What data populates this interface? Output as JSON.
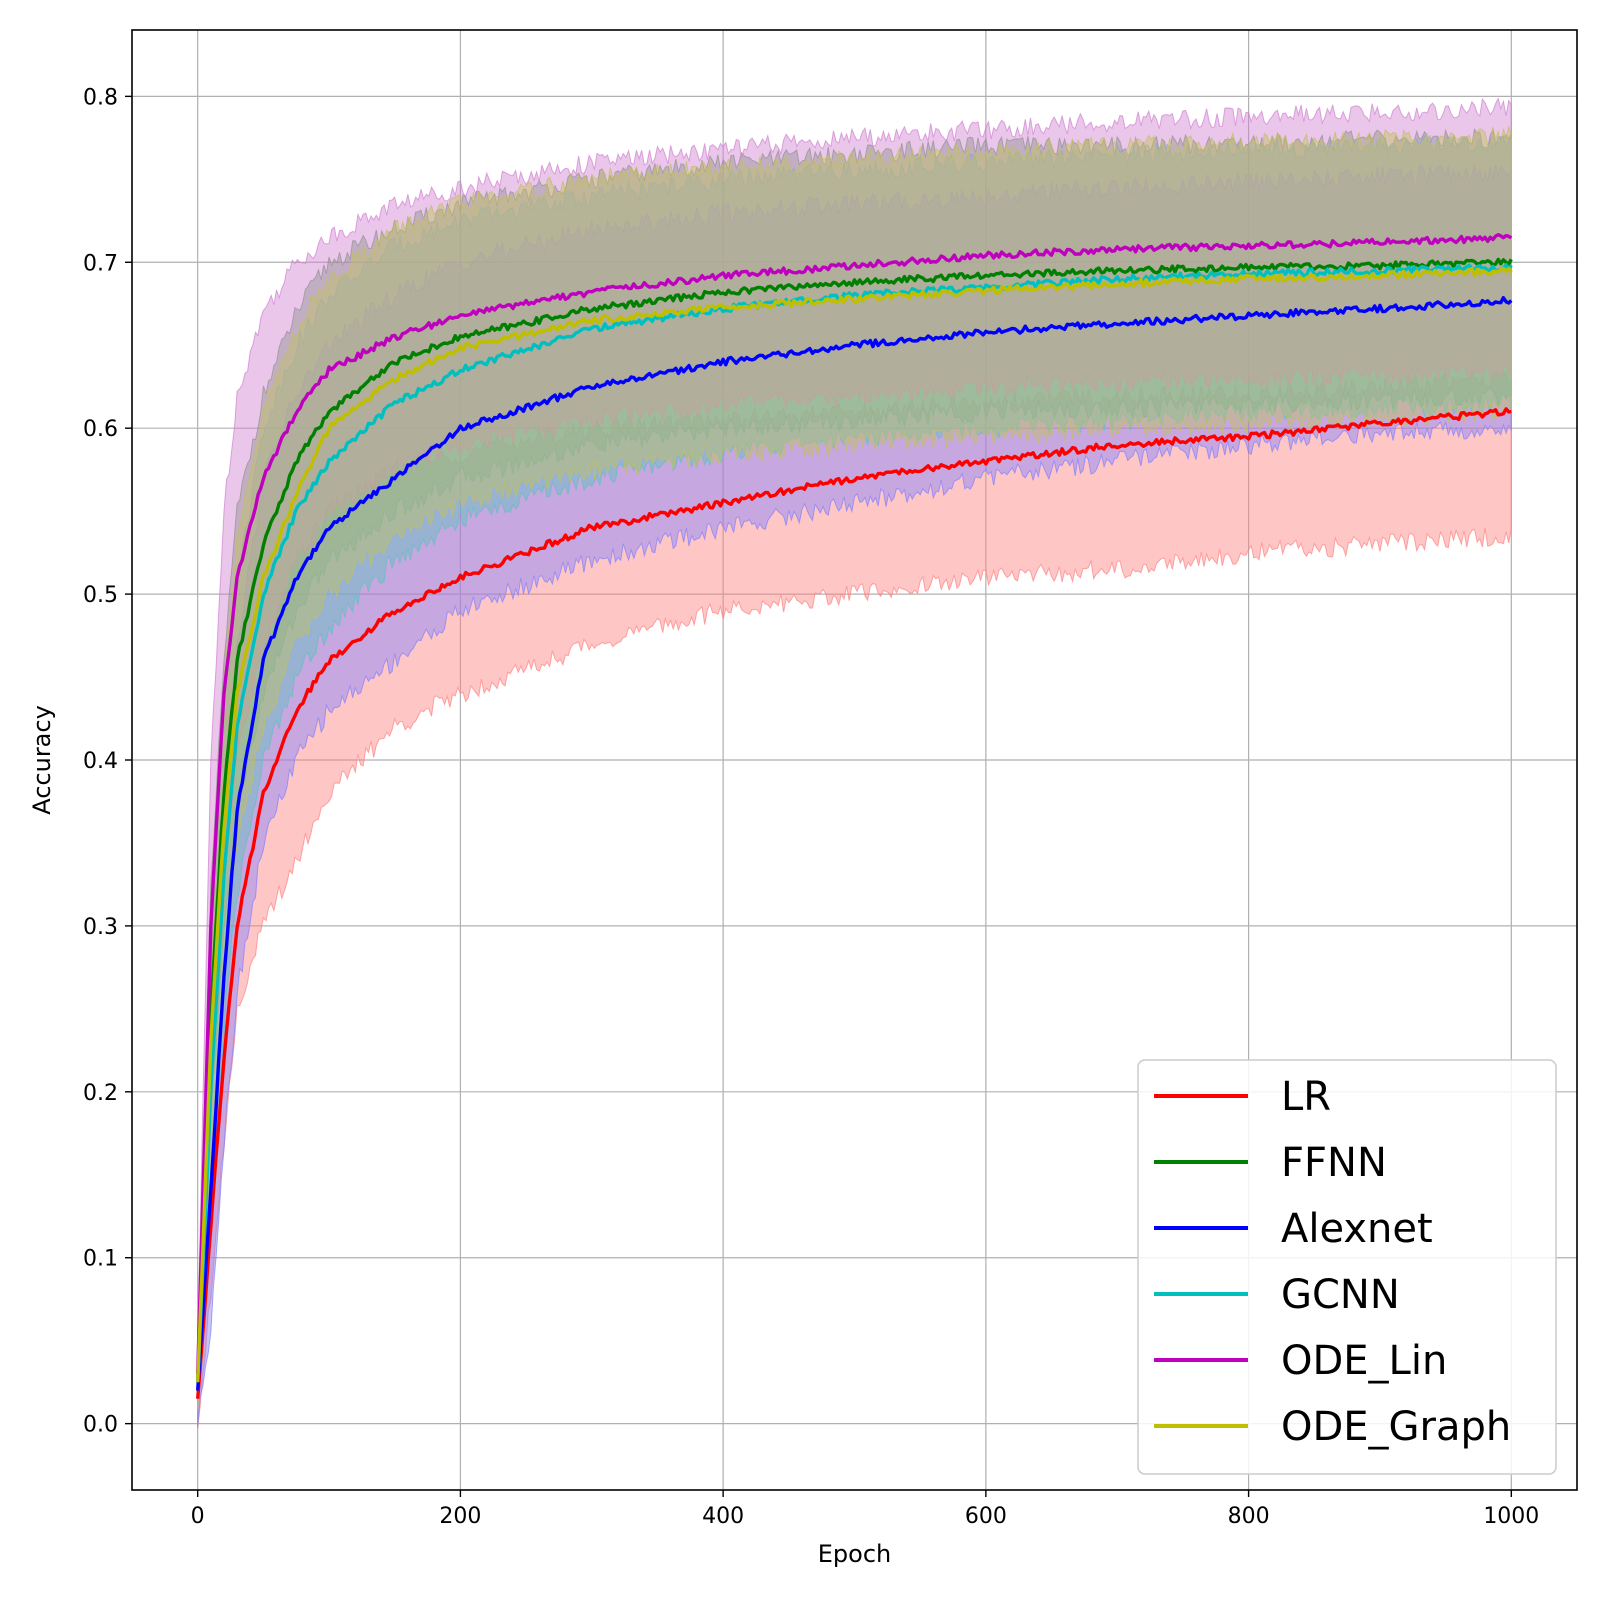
{
  "chart_data": {
    "type": "line",
    "xlabel": "Epoch",
    "ylabel": "Accuracy",
    "xlim": [
      -50,
      1050
    ],
    "ylim": [
      -0.04,
      0.84
    ],
    "xticks": [
      0,
      200,
      400,
      600,
      800,
      1000
    ],
    "xtick_labels": [
      "0",
      "200",
      "400",
      "600",
      "800",
      "1000"
    ],
    "yticks": [
      0.0,
      0.1,
      0.2,
      0.3,
      0.4,
      0.5,
      0.6,
      0.7,
      0.8
    ],
    "ytick_labels": [
      "0.0",
      "0.1",
      "0.2",
      "0.3",
      "0.4",
      "0.5",
      "0.6",
      "0.7",
      "0.8"
    ],
    "grid": true,
    "legend_position": "lower-right",
    "x": [
      0,
      10,
      20,
      30,
      50,
      75,
      100,
      150,
      200,
      300,
      400,
      500,
      600,
      700,
      800,
      900,
      1000
    ],
    "series": [
      {
        "name": "LR",
        "color": "#ff0000",
        "band_color": "#ff8080",
        "values": [
          0.015,
          0.12,
          0.22,
          0.3,
          0.38,
          0.43,
          0.46,
          0.49,
          0.51,
          0.54,
          0.555,
          0.57,
          0.58,
          0.59,
          0.595,
          0.603,
          0.61
        ],
        "upper": [
          0.03,
          0.16,
          0.27,
          0.36,
          0.46,
          0.52,
          0.55,
          0.575,
          0.585,
          0.6,
          0.605,
          0.61,
          0.615,
          0.62,
          0.62,
          0.625,
          0.63
        ],
        "lower": [
          0.0,
          0.08,
          0.17,
          0.25,
          0.3,
          0.34,
          0.38,
          0.42,
          0.44,
          0.47,
          0.49,
          0.5,
          0.51,
          0.515,
          0.525,
          0.53,
          0.535
        ]
      },
      {
        "name": "FFNN",
        "color": "#008000",
        "band_color": "#60a060",
        "values": [
          0.025,
          0.25,
          0.38,
          0.46,
          0.53,
          0.58,
          0.61,
          0.64,
          0.655,
          0.672,
          0.682,
          0.688,
          0.692,
          0.695,
          0.697,
          0.698,
          0.7
        ],
        "upper": [
          0.04,
          0.32,
          0.46,
          0.55,
          0.62,
          0.67,
          0.7,
          0.72,
          0.735,
          0.75,
          0.76,
          0.765,
          0.77,
          0.77,
          0.772,
          0.774,
          0.775
        ],
        "lower": [
          0.01,
          0.18,
          0.3,
          0.37,
          0.44,
          0.49,
          0.52,
          0.55,
          0.57,
          0.59,
          0.6,
          0.605,
          0.61,
          0.612,
          0.615,
          0.617,
          0.62
        ]
      },
      {
        "name": "Alexnet",
        "color": "#0000ff",
        "band_color": "#8080ff",
        "values": [
          0.02,
          0.14,
          0.27,
          0.37,
          0.46,
          0.51,
          0.54,
          0.57,
          0.6,
          0.625,
          0.64,
          0.65,
          0.658,
          0.663,
          0.668,
          0.672,
          0.677
        ],
        "upper": [
          0.04,
          0.22,
          0.36,
          0.47,
          0.57,
          0.62,
          0.65,
          0.68,
          0.7,
          0.72,
          0.73,
          0.735,
          0.74,
          0.745,
          0.748,
          0.752,
          0.755
        ],
        "lower": [
          0.0,
          0.06,
          0.17,
          0.26,
          0.35,
          0.4,
          0.43,
          0.46,
          0.49,
          0.52,
          0.54,
          0.555,
          0.57,
          0.58,
          0.59,
          0.598,
          0.6
        ]
      },
      {
        "name": "GCNN",
        "color": "#00bfbf",
        "band_color": "#60c0c0",
        "values": [
          0.025,
          0.2,
          0.33,
          0.42,
          0.5,
          0.55,
          0.58,
          0.615,
          0.635,
          0.66,
          0.672,
          0.68,
          0.685,
          0.69,
          0.693,
          0.695,
          0.697
        ],
        "upper": [
          0.04,
          0.28,
          0.42,
          0.51,
          0.6,
          0.65,
          0.68,
          0.71,
          0.725,
          0.74,
          0.75,
          0.755,
          0.76,
          0.765,
          0.768,
          0.77,
          0.772
        ],
        "lower": [
          0.01,
          0.13,
          0.24,
          0.32,
          0.4,
          0.45,
          0.48,
          0.52,
          0.545,
          0.57,
          0.585,
          0.595,
          0.6,
          0.605,
          0.61,
          0.612,
          0.615
        ]
      },
      {
        "name": "ODE_Lin",
        "color": "#bf00bf",
        "band_color": "#d080d0",
        "values": [
          0.03,
          0.3,
          0.44,
          0.51,
          0.57,
          0.61,
          0.635,
          0.655,
          0.668,
          0.682,
          0.692,
          0.698,
          0.704,
          0.708,
          0.71,
          0.712,
          0.715
        ],
        "upper": [
          0.05,
          0.4,
          0.55,
          0.62,
          0.67,
          0.7,
          0.715,
          0.735,
          0.745,
          0.76,
          0.768,
          0.775,
          0.78,
          0.785,
          0.788,
          0.79,
          0.793
        ],
        "lower": [
          0.01,
          0.2,
          0.33,
          0.4,
          0.47,
          0.52,
          0.55,
          0.575,
          0.59,
          0.605,
          0.615,
          0.62,
          0.625,
          0.628,
          0.63,
          0.632,
          0.635
        ]
      },
      {
        "name": "ODE_Graph",
        "color": "#bfbf00",
        "band_color": "#c0c060",
        "values": [
          0.025,
          0.23,
          0.36,
          0.44,
          0.51,
          0.56,
          0.6,
          0.63,
          0.648,
          0.665,
          0.673,
          0.678,
          0.683,
          0.687,
          0.69,
          0.692,
          0.695
        ],
        "upper": [
          0.04,
          0.31,
          0.45,
          0.53,
          0.61,
          0.66,
          0.69,
          0.72,
          0.735,
          0.75,
          0.757,
          0.762,
          0.766,
          0.77,
          0.772,
          0.774,
          0.776
        ],
        "lower": [
          0.01,
          0.15,
          0.27,
          0.35,
          0.42,
          0.47,
          0.5,
          0.535,
          0.555,
          0.575,
          0.585,
          0.59,
          0.595,
          0.6,
          0.603,
          0.606,
          0.61
        ]
      }
    ]
  }
}
